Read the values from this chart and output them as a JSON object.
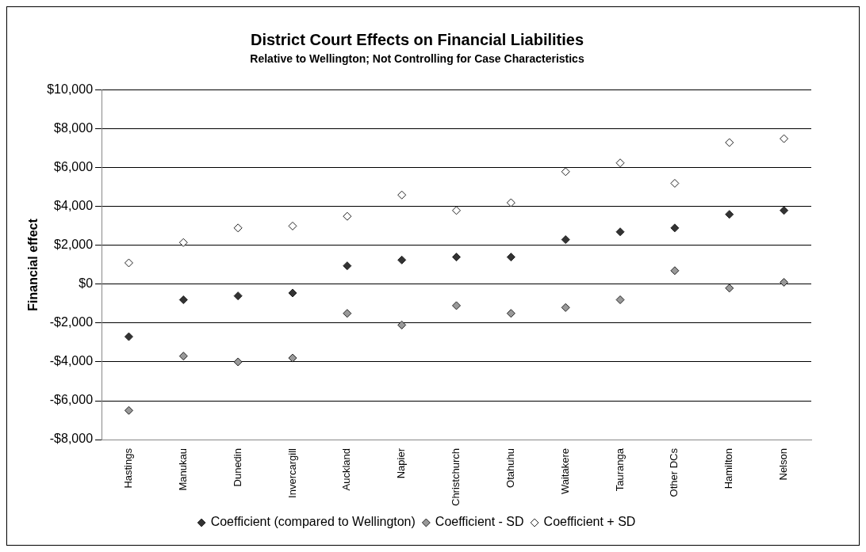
{
  "chart_data": {
    "type": "scatter",
    "title": "District Court Effects on Financial Liabilities",
    "subtitle": "Relative to Wellington; Not Controlling for Case Characteristics",
    "ylabel": "Financial effect",
    "categories": [
      "Hastings",
      "Manukau",
      "Dunedin",
      "Invercargill",
      "Auckland",
      "Napier",
      "Christchurch",
      "Otahuhu",
      "Waitakere",
      "Tauranga",
      "Other DCs",
      "Hamilton",
      "Nelson"
    ],
    "series": [
      {
        "name": "Coefficient (compared to Wellington)",
        "color": "#333333",
        "values": [
          -2700,
          -800,
          -600,
          -450,
          950,
          1250,
          1400,
          1400,
          2300,
          2700,
          2900,
          3600,
          3800
        ]
      },
      {
        "name": "Coefficient - SD",
        "color": "#999999",
        "values": [
          -6500,
          -3700,
          -4000,
          -3800,
          -1500,
          -2100,
          -1100,
          -1500,
          -1200,
          -800,
          700,
          -200,
          100
        ]
      },
      {
        "name": "Coefficient + SD",
        "color": "#ffffff",
        "values": [
          1100,
          2150,
          2900,
          3000,
          3500,
          4600,
          3800,
          4200,
          5800,
          6250,
          5200,
          7300,
          7500
        ]
      }
    ],
    "ylim": [
      -8000,
      10000
    ],
    "yticks": [
      {
        "value": -8000,
        "label": "-$8,000"
      },
      {
        "value": -6000,
        "label": "-$6,000"
      },
      {
        "value": -4000,
        "label": "-$4,000"
      },
      {
        "value": -2000,
        "label": "-$2,000"
      },
      {
        "value": 0,
        "label": "$0"
      },
      {
        "value": 2000,
        "label": "$2,000"
      },
      {
        "value": 4000,
        "label": "$4,000"
      },
      {
        "value": 6000,
        "label": "$6,000"
      },
      {
        "value": 8000,
        "label": "$8,000"
      },
      {
        "value": 10000,
        "label": "$10,000"
      }
    ],
    "grid": "y",
    "legend": "bottom",
    "marker": "diamond"
  }
}
